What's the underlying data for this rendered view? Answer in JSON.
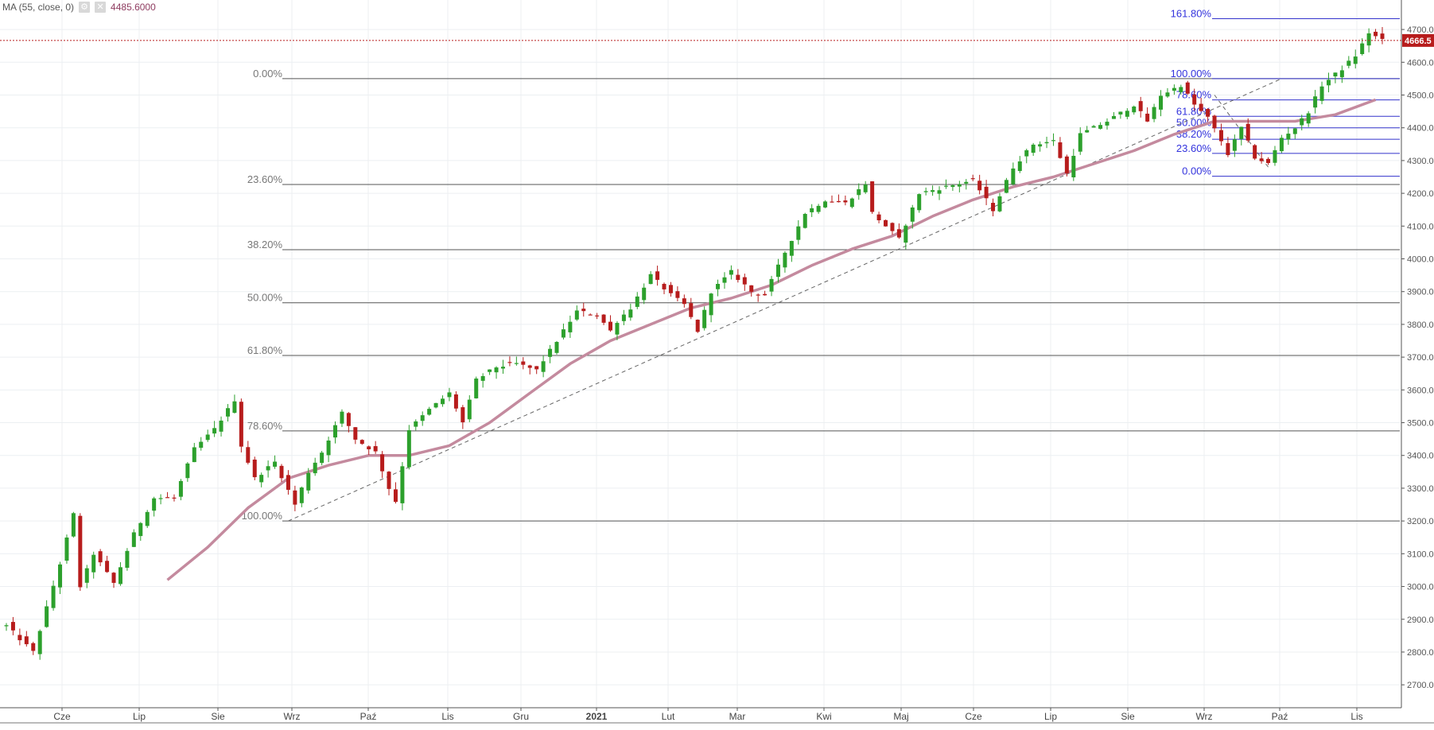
{
  "legend": {
    "indicator": "MA (55, close, 0)",
    "value": "4485.6000",
    "settings_icon": "gear-icon",
    "close_icon": "close-icon"
  },
  "chart_data": {
    "type": "candlestick",
    "title": "",
    "xlabel": "",
    "ylabel": "",
    "ylim": [
      2630,
      4790
    ],
    "grid": true,
    "y_ticks": [
      2700,
      2800,
      2900,
      3000,
      3100,
      3200,
      3300,
      3400,
      3500,
      3600,
      3700,
      3800,
      3900,
      4000,
      4100,
      4200,
      4300,
      4400,
      4500,
      4600,
      4700
    ],
    "y_tick_labels": [
      "2700.00",
      "2800.00",
      "2900.00",
      "3000.00",
      "3100.00",
      "3200.00",
      "3300.00",
      "3400.00",
      "3500.00",
      "3600.00",
      "3700.00",
      "3800.00",
      "3900.00",
      "4000.00",
      "4100.00",
      "4200.00",
      "4300.00",
      "4400.00",
      "4500.00",
      "4600.00",
      "4700.00"
    ],
    "x_labels": [
      "Cze",
      "Lip",
      "Sie",
      "Wrz",
      "Paź",
      "Lis",
      "Gru",
      "2021",
      "Lut",
      "Mar",
      "Kwi",
      "Maj",
      "Cze",
      "Lip",
      "Sie",
      "Wrz",
      "Paź",
      "Lis"
    ],
    "bold_x_label": "2021",
    "last_price": 4666.5,
    "last_price_label": "4666.5",
    "colors": {
      "up": "#2ca02c",
      "down": "#b71c1c",
      "ma": "#c48a9e",
      "fib_major": "#555555",
      "fib_minor": "#3333cc",
      "last": "#b71c1c"
    },
    "price_path": [
      [
        0,
        2880
      ],
      [
        4,
        2800
      ],
      [
        8,
        3070
      ],
      [
        10,
        3220
      ],
      [
        11,
        3000
      ],
      [
        13,
        3100
      ],
      [
        16,
        3010
      ],
      [
        19,
        3160
      ],
      [
        22,
        3270
      ],
      [
        25,
        3270
      ],
      [
        28,
        3420
      ],
      [
        31,
        3480
      ],
      [
        34,
        3570
      ],
      [
        35,
        3430
      ],
      [
        37,
        3330
      ],
      [
        40,
        3380
      ],
      [
        43,
        3250
      ],
      [
        45,
        3350
      ],
      [
        47,
        3410
      ],
      [
        50,
        3530
      ],
      [
        52,
        3450
      ],
      [
        55,
        3410
      ],
      [
        57,
        3300
      ],
      [
        58,
        3260
      ],
      [
        60,
        3480
      ],
      [
        63,
        3540
      ],
      [
        66,
        3590
      ],
      [
        68,
        3500
      ],
      [
        70,
        3630
      ],
      [
        73,
        3670
      ],
      [
        76,
        3680
      ],
      [
        79,
        3660
      ],
      [
        82,
        3750
      ],
      [
        85,
        3840
      ],
      [
        88,
        3830
      ],
      [
        90,
        3780
      ],
      [
        91,
        3810
      ],
      [
        93,
        3850
      ],
      [
        96,
        3950
      ],
      [
        99,
        3890
      ],
      [
        101,
        3860
      ],
      [
        103,
        3780
      ],
      [
        105,
        3900
      ],
      [
        108,
        3960
      ],
      [
        111,
        3900
      ],
      [
        113,
        3890
      ],
      [
        116,
        4020
      ],
      [
        119,
        4140
      ],
      [
        122,
        4180
      ],
      [
        125,
        4170
      ],
      [
        128,
        4230
      ],
      [
        129,
        4140
      ],
      [
        131,
        4100
      ],
      [
        133,
        4060
      ],
      [
        136,
        4200
      ],
      [
        140,
        4220
      ],
      [
        144,
        4240
      ],
      [
        147,
        4150
      ],
      [
        150,
        4280
      ],
      [
        153,
        4350
      ],
      [
        156,
        4360
      ],
      [
        158,
        4260
      ],
      [
        160,
        4380
      ],
      [
        164,
        4420
      ],
      [
        168,
        4470
      ],
      [
        170,
        4420
      ],
      [
        172,
        4500
      ],
      [
        175,
        4530
      ],
      [
        177,
        4470
      ],
      [
        179,
        4430
      ],
      [
        181,
        4360
      ],
      [
        182,
        4320
      ],
      [
        184,
        4400
      ],
      [
        186,
        4310
      ],
      [
        188,
        4290
      ],
      [
        190,
        4370
      ],
      [
        192,
        4400
      ],
      [
        194,
        4450
      ],
      [
        196,
        4530
      ],
      [
        199,
        4580
      ],
      [
        201,
        4620
      ],
      [
        203,
        4690
      ],
      [
        205,
        4666.5
      ]
    ],
    "ma_path": [
      [
        24,
        3020
      ],
      [
        30,
        3120
      ],
      [
        36,
        3240
      ],
      [
        42,
        3330
      ],
      [
        48,
        3370
      ],
      [
        54,
        3400
      ],
      [
        60,
        3400
      ],
      [
        66,
        3430
      ],
      [
        72,
        3500
      ],
      [
        78,
        3590
      ],
      [
        84,
        3680
      ],
      [
        90,
        3750
      ],
      [
        96,
        3800
      ],
      [
        102,
        3850
      ],
      [
        108,
        3880
      ],
      [
        114,
        3920
      ],
      [
        120,
        3980
      ],
      [
        126,
        4030
      ],
      [
        132,
        4070
      ],
      [
        138,
        4130
      ],
      [
        144,
        4180
      ],
      [
        150,
        4220
      ],
      [
        156,
        4250
      ],
      [
        162,
        4290
      ],
      [
        168,
        4330
      ],
      [
        174,
        4380
      ],
      [
        180,
        4420
      ],
      [
        186,
        4420
      ],
      [
        192,
        4420
      ],
      [
        198,
        4440
      ],
      [
        204,
        4485.6
      ]
    ],
    "trend_line": [
      [
        42,
        3200
      ],
      [
        190,
        4550
      ]
    ],
    "trend_line_2": [
      [
        180,
        4500
      ],
      [
        188,
        4280
      ]
    ],
    "fib_major": [
      {
        "label": "0.00%",
        "price": 4550
      },
      {
        "label": "23.60%",
        "price": 4227
      },
      {
        "label": "38.20%",
        "price": 4028
      },
      {
        "label": "50.00%",
        "price": 3866
      },
      {
        "label": "61.80%",
        "price": 3705
      },
      {
        "label": "78.60%",
        "price": 3475
      },
      {
        "label": "100.00%",
        "price": 3200
      }
    ],
    "fib_minor": [
      {
        "label": "161.80%",
        "price": 4733
      },
      {
        "label": "100.00%",
        "price": 4550
      },
      {
        "label": "78.60%",
        "price": 4485
      },
      {
        "label": "61.80%",
        "price": 4435
      },
      {
        "label": "50.00%",
        "price": 4400
      },
      {
        "label": "38.20%",
        "price": 4365
      },
      {
        "label": "23.60%",
        "price": 4322
      },
      {
        "label": "0.00%",
        "price": 4252
      }
    ]
  }
}
